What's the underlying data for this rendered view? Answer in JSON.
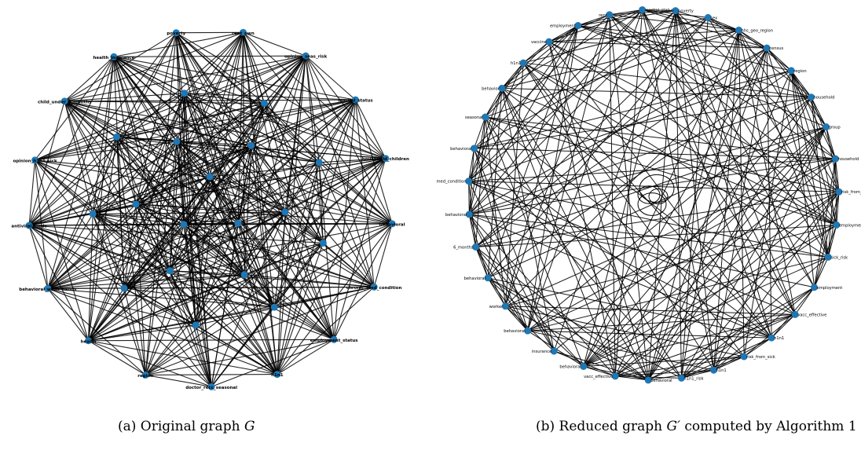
{
  "colors": {
    "node": "#1f77b4",
    "edge": "#000000",
    "label": "#000000"
  },
  "graph_a": {
    "labels": [
      "rent_own",
      "opinion_seas_risk",
      "marital_status",
      "household_children",
      "behavioral",
      "chronic_med_condition",
      "employment_status",
      "h1n1",
      "doctor_recc_seasonal",
      "region",
      "health",
      "behavioral_wash_hands",
      "antiviral_meds",
      "opinion_h1n1_sick",
      "child_under_6_months",
      "health_insurance",
      "poverty"
    ]
  },
  "graph_b": {
    "labels": [
      "employment",
      "rent",
      "marital_status",
      "poverty",
      "sex",
      "hhs_geo_region",
      "census",
      "region",
      "household",
      "group",
      "household",
      "risk_from_vacc",
      "employment",
      "sick_risk",
      "employment",
      "vacc_effective",
      "h1n1",
      "risk_from_sick",
      "h1n1",
      "h1n1_risk",
      "behavioral",
      "vacc_effective",
      "behavioral",
      "insurance",
      "behavioral",
      "worker",
      "behavioral",
      "6_months",
      "behavioral",
      "med_condition",
      "behavioral",
      "seasonal",
      "behavior",
      "h1n1",
      "vaccine"
    ]
  },
  "captions": {
    "a_prefix": "(a) Original graph",
    "a_symbol": "G",
    "b_prefix": "(b) Reduced graph",
    "b_symbol": "G′",
    "b_suffix": "computed by Algorithm 1"
  }
}
